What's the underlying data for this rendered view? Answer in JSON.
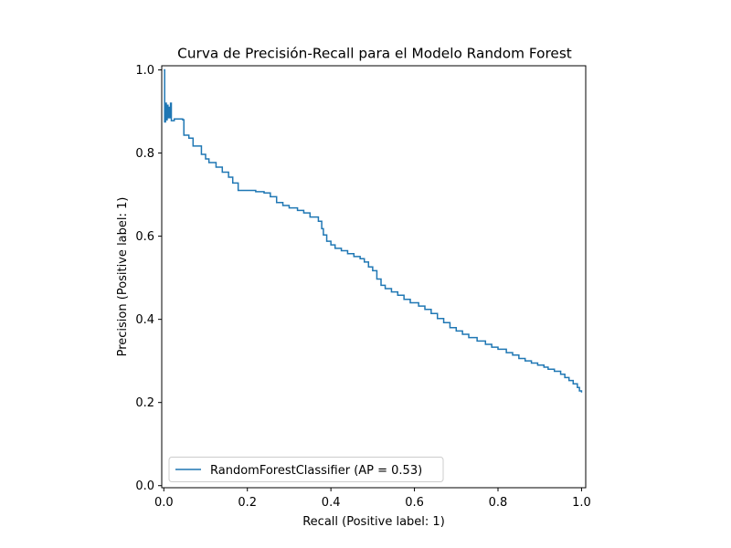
{
  "chart_data": {
    "type": "line",
    "title": "Curva de Precisión-Recall para el Modelo Random Forest",
    "xlabel": "Recall (Positive label: 1)",
    "ylabel": "Precision (Positive label: 1)",
    "xlim": [
      -0.005,
      1.01
    ],
    "ylim": [
      -0.005,
      1.01
    ],
    "xticks": [
      0.0,
      0.2,
      0.4,
      0.6,
      0.8,
      1.0
    ],
    "yticks": [
      0.0,
      0.2,
      0.4,
      0.6,
      0.8,
      1.0
    ],
    "xtick_labels": [
      "0.0",
      "0.2",
      "0.4",
      "0.6",
      "0.8",
      "1.0"
    ],
    "ytick_labels": [
      "0.0",
      "0.2",
      "0.4",
      "0.6",
      "0.8",
      "1.0"
    ],
    "grid": false,
    "legend_position": "lower-left",
    "drawstyle": "steps-post",
    "series": [
      {
        "name": "RandomForestClassifier (AP = 0.53)",
        "color": "#1f77b4",
        "points": [
          [
            0.0,
            1.0
          ],
          [
            0.002,
            0.875
          ],
          [
            0.004,
            0.92
          ],
          [
            0.006,
            0.88
          ],
          [
            0.008,
            0.915
          ],
          [
            0.01,
            0.885
          ],
          [
            0.012,
            0.91
          ],
          [
            0.014,
            0.885
          ],
          [
            0.016,
            0.92
          ],
          [
            0.018,
            0.878
          ],
          [
            0.025,
            0.882
          ],
          [
            0.045,
            0.88
          ],
          [
            0.048,
            0.843
          ],
          [
            0.06,
            0.836
          ],
          [
            0.07,
            0.817
          ],
          [
            0.09,
            0.797
          ],
          [
            0.1,
            0.786
          ],
          [
            0.108,
            0.777
          ],
          [
            0.125,
            0.766
          ],
          [
            0.14,
            0.754
          ],
          [
            0.155,
            0.742
          ],
          [
            0.165,
            0.728
          ],
          [
            0.178,
            0.71
          ],
          [
            0.22,
            0.707
          ],
          [
            0.24,
            0.704
          ],
          [
            0.255,
            0.695
          ],
          [
            0.27,
            0.681
          ],
          [
            0.285,
            0.674
          ],
          [
            0.3,
            0.668
          ],
          [
            0.32,
            0.662
          ],
          [
            0.335,
            0.656
          ],
          [
            0.35,
            0.646
          ],
          [
            0.37,
            0.636
          ],
          [
            0.378,
            0.618
          ],
          [
            0.382,
            0.603
          ],
          [
            0.39,
            0.588
          ],
          [
            0.4,
            0.579
          ],
          [
            0.41,
            0.571
          ],
          [
            0.425,
            0.565
          ],
          [
            0.44,
            0.558
          ],
          [
            0.455,
            0.551
          ],
          [
            0.47,
            0.546
          ],
          [
            0.48,
            0.538
          ],
          [
            0.49,
            0.526
          ],
          [
            0.5,
            0.517
          ],
          [
            0.51,
            0.497
          ],
          [
            0.52,
            0.482
          ],
          [
            0.53,
            0.474
          ],
          [
            0.545,
            0.466
          ],
          [
            0.56,
            0.458
          ],
          [
            0.575,
            0.448
          ],
          [
            0.59,
            0.44
          ],
          [
            0.61,
            0.432
          ],
          [
            0.625,
            0.424
          ],
          [
            0.64,
            0.414
          ],
          [
            0.655,
            0.402
          ],
          [
            0.67,
            0.392
          ],
          [
            0.685,
            0.38
          ],
          [
            0.7,
            0.372
          ],
          [
            0.715,
            0.364
          ],
          [
            0.73,
            0.356
          ],
          [
            0.75,
            0.348
          ],
          [
            0.77,
            0.34
          ],
          [
            0.785,
            0.333
          ],
          [
            0.8,
            0.328
          ],
          [
            0.82,
            0.32
          ],
          [
            0.835,
            0.314
          ],
          [
            0.85,
            0.306
          ],
          [
            0.865,
            0.3
          ],
          [
            0.88,
            0.295
          ],
          [
            0.895,
            0.29
          ],
          [
            0.91,
            0.285
          ],
          [
            0.92,
            0.28
          ],
          [
            0.935,
            0.275
          ],
          [
            0.95,
            0.268
          ],
          [
            0.96,
            0.26
          ],
          [
            0.97,
            0.253
          ],
          [
            0.98,
            0.245
          ],
          [
            0.99,
            0.236
          ],
          [
            0.995,
            0.228
          ],
          [
            1.0,
            0.224
          ]
        ]
      }
    ]
  }
}
